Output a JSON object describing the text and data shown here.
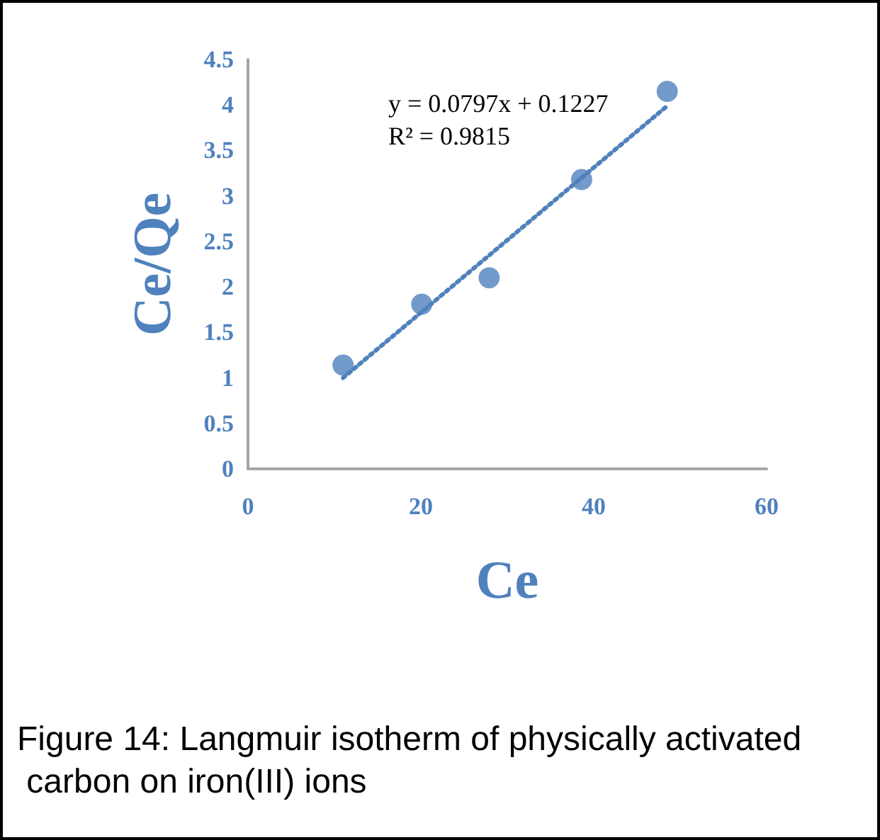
{
  "chart_data": {
    "type": "scatter",
    "xlabel": "Ce",
    "ylabel": "Ce/Qe",
    "annotations": [
      "y = 0.0797x + 0.1227",
      "R² = 0.9815",
      "Figure 14: Langmuir isotherm of physically activated carbon on iron(III) ions"
    ],
    "series": [
      {
        "color": "#4f81bd",
        "x": [
          11,
          20.1,
          27.9,
          38.6,
          48.5
        ],
        "values": [
          1.14,
          1.81,
          2.1,
          3.18,
          4.15
        ],
        "marker": "circle"
      },
      {
        "type": "line",
        "color": "#4f81bd",
        "x": [
          11,
          48.5
        ],
        "values": [
          1.0,
          3.99
        ],
        "line_style": "dotted",
        "marker": "none"
      }
    ],
    "xlim": [
      0,
      60
    ],
    "xticks": [
      0,
      20,
      40,
      60
    ],
    "ylim": [
      0,
      4.5
    ],
    "yticks": [
      0,
      0.5,
      1,
      1.5,
      2,
      2.5,
      3,
      3.5,
      4,
      4.5
    ],
    "tick_labels": "xy"
  }
}
